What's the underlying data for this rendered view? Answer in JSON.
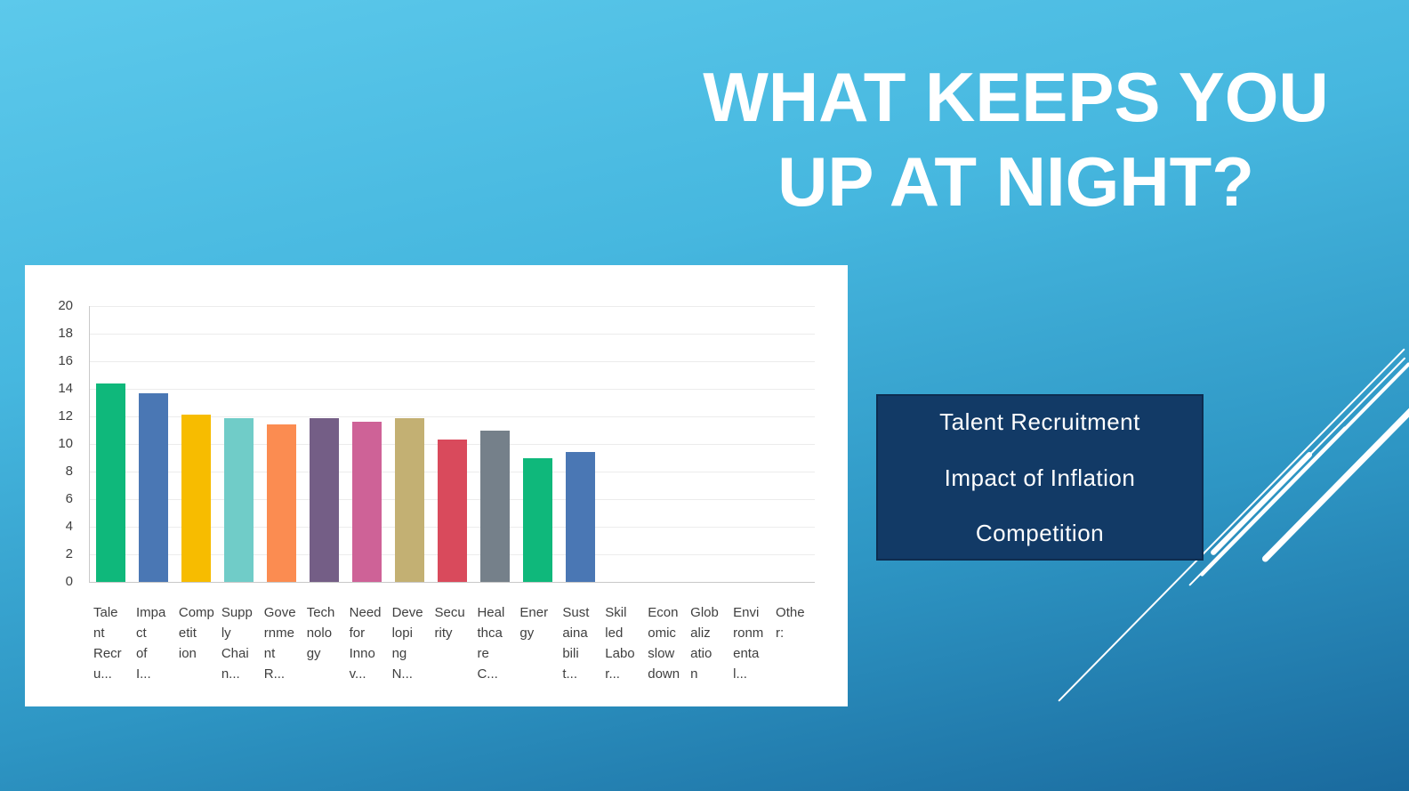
{
  "slide": {
    "title_line1": "WHAT KEEPS YOU",
    "title_line2": "UP AT NIGHT?",
    "title_color": "#FFFFFF",
    "background_top": "#5CC9EB",
    "background_bottom": "#1A6A9E"
  },
  "callout": {
    "items": [
      "Talent Recruitment",
      "Impact of Inflation",
      "Competition"
    ],
    "background": "#123A66",
    "border_color": "#0D2C4F",
    "text_color": "#FFFFFF"
  },
  "chart_data": {
    "type": "bar",
    "title": "",
    "xlabel": "",
    "ylabel": "",
    "ylim": [
      0,
      20
    ],
    "ytick_step": 2,
    "yticks": [
      0,
      2,
      4,
      6,
      8,
      10,
      12,
      14,
      16,
      18,
      20
    ],
    "grid": true,
    "legend": false,
    "plot_background": "#FFFFFF",
    "axis_color": "#C9C9C9",
    "gridline_color": "#ECECEC",
    "tick_text_color": "#404040",
    "label_text_color": "#3F3F3F",
    "categories": [
      {
        "label_lines": [
          "Tale",
          "nt",
          "Recr",
          "u..."
        ],
        "value": 14.4,
        "color": "#0FB87B"
      },
      {
        "label_lines": [
          "Impa",
          "ct",
          "of",
          "I..."
        ],
        "value": 13.7,
        "color": "#4A77B4"
      },
      {
        "label_lines": [
          "Comp",
          "etit",
          "ion"
        ],
        "value": 12.1,
        "color": "#F7BC00"
      },
      {
        "label_lines": [
          "Supp",
          "ly",
          "Chai",
          "n..."
        ],
        "value": 11.9,
        "color": "#70CCC8"
      },
      {
        "label_lines": [
          "Gove",
          "rnme",
          "nt",
          "R..."
        ],
        "value": 11.4,
        "color": "#FB8C51"
      },
      {
        "label_lines": [
          "Tech",
          "nolo",
          "gy"
        ],
        "value": 11.9,
        "color": "#745E86"
      },
      {
        "label_lines": [
          "Need",
          "for",
          "Inno",
          "v..."
        ],
        "value": 11.6,
        "color": "#CE6297"
      },
      {
        "label_lines": [
          "Deve",
          "lopi",
          "ng",
          "N..."
        ],
        "value": 11.9,
        "color": "#C3B073"
      },
      {
        "label_lines": [
          "Secu",
          "rity"
        ],
        "value": 10.3,
        "color": "#D94A5C"
      },
      {
        "label_lines": [
          "Heal",
          "thca",
          "re",
          "C..."
        ],
        "value": 11.0,
        "color": "#75808A"
      },
      {
        "label_lines": [
          "Ener",
          "gy"
        ],
        "value": 9.0,
        "color": "#0FB87B"
      },
      {
        "label_lines": [
          "Sust",
          "aina",
          "bili",
          "t..."
        ],
        "value": 9.4,
        "color": "#4A77B4"
      },
      {
        "label_lines": [
          "Skil",
          "led",
          "Labo",
          "r..."
        ],
        "value": 0,
        "color": "#F7BC00"
      },
      {
        "label_lines": [
          "Econ",
          "omic",
          "slow",
          "down"
        ],
        "value": 0,
        "color": "#70CCC8"
      },
      {
        "label_lines": [
          "Glob",
          "aliz",
          "atio",
          "n"
        ],
        "value": 0,
        "color": "#FB8C51"
      },
      {
        "label_lines": [
          "Envi",
          "ronm",
          "enta",
          "l..."
        ],
        "value": 0,
        "color": "#745E86"
      },
      {
        "label_lines": [
          "Othe",
          "r:"
        ],
        "value": 0,
        "color": "#CE6297"
      }
    ]
  }
}
